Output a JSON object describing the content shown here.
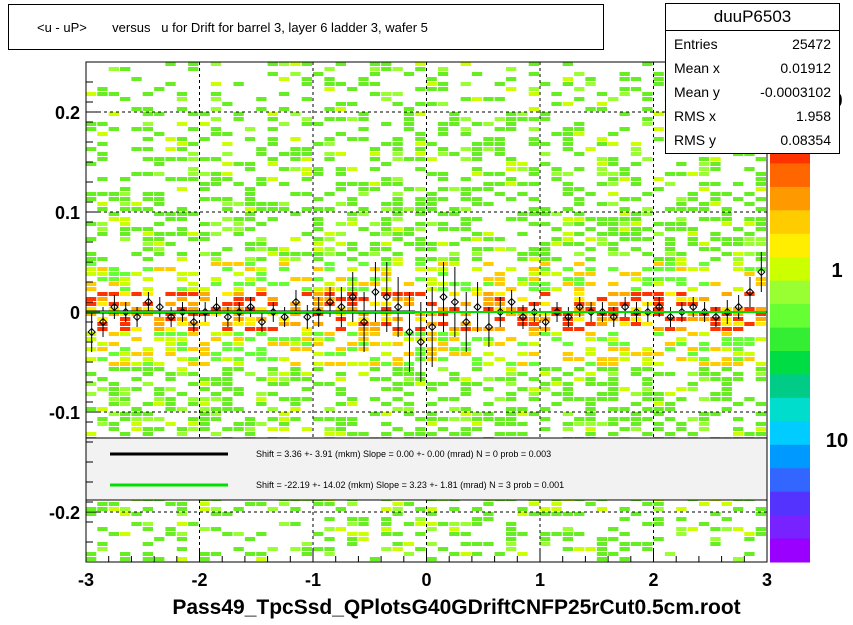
{
  "title": "<u - uP>       versus   u for Drift for barrel 3, layer 6 ladder 3, wafer 5",
  "footer": "Pass49_TpcSsd_QPlotsG40GDriftCNFP25rCut0.5cm.root",
  "stats": {
    "name": "duuP6503",
    "rows": [
      {
        "label": "Entries",
        "value": "25472"
      },
      {
        "label": "Mean x",
        "value": "0.01912"
      },
      {
        "label": "Mean y",
        "value": "-0.0003102"
      },
      {
        "label": "RMS x",
        "value": "1.958"
      },
      {
        "label": "RMS y",
        "value": "0.08354"
      }
    ]
  },
  "colorbar": {
    "labels": [
      "0",
      "1",
      "10"
    ]
  },
  "legend": [
    {
      "color": "#000000",
      "text": "Shift =     3.36 +- 3.91 (mkm) Slope =     0.00 +- 0.00 (mrad)  N = 0 prob = 0.003"
    },
    {
      "color": "#00e000",
      "text": "Shift =   -22.19 +- 14.02 (mkm) Slope =     3.23 +- 1.81 (mrad)  N = 3 prob = 0.001"
    }
  ],
  "chart_data": {
    "type": "heatmap",
    "title": "<u - uP>       versus   u for Drift for barrel 3, layer 6 ladder 3, wafer 5",
    "xlabel": "",
    "ylabel": "",
    "xlim": [
      -3,
      3
    ],
    "ylim": [
      -0.25,
      0.25
    ],
    "xticks": [
      -3,
      -2,
      -1,
      0,
      1,
      2,
      3
    ],
    "yticks": [
      -0.2,
      -0.1,
      0,
      0.1,
      0.2
    ],
    "ytick_labels": [
      "-0.2",
      "-0.1",
      "0",
      "0.1",
      "0.2"
    ],
    "grid": true,
    "profile_points": {
      "x": [
        -2.95,
        -2.85,
        -2.75,
        -2.65,
        -2.55,
        -2.45,
        -2.35,
        -2.25,
        -2.15,
        -2.05,
        -1.95,
        -1.85,
        -1.75,
        -1.65,
        -1.55,
        -1.45,
        -1.35,
        -1.25,
        -1.15,
        -1.05,
        -0.95,
        -0.85,
        -0.75,
        -0.65,
        -0.55,
        -0.45,
        -0.35,
        -0.25,
        -0.15,
        -0.05,
        0.05,
        0.15,
        0.25,
        0.35,
        0.45,
        0.55,
        0.65,
        0.75,
        0.85,
        0.95,
        1.05,
        1.15,
        1.25,
        1.35,
        1.45,
        1.55,
        1.65,
        1.75,
        1.85,
        1.95,
        2.05,
        2.15,
        2.25,
        2.35,
        2.45,
        2.55,
        2.65,
        2.75,
        2.85,
        2.95
      ],
      "y": [
        -0.02,
        -0.01,
        0.005,
        0.0,
        -0.005,
        0.01,
        0.005,
        -0.005,
        0.0,
        -0.01,
        0.0,
        0.005,
        -0.005,
        0.0,
        0.005,
        -0.01,
        0.0,
        -0.005,
        0.01,
        -0.005,
        0.0,
        0.01,
        0.005,
        0.015,
        -0.01,
        0.02,
        0.015,
        0.005,
        -0.02,
        -0.03,
        -0.015,
        0.015,
        0.01,
        -0.01,
        0.005,
        -0.015,
        0.0,
        0.01,
        -0.005,
        0.0,
        -0.01,
        0.0,
        -0.005,
        0.005,
        0.0,
        0.0,
        -0.005,
        0.005,
        0.0,
        0.0,
        0.005,
        -0.005,
        0.0,
        0.005,
        0.0,
        -0.005,
        0.0,
        0.005,
        0.02,
        0.04
      ],
      "err": [
        0.02,
        0.015,
        0.012,
        0.01,
        0.01,
        0.01,
        0.01,
        0.01,
        0.01,
        0.01,
        0.01,
        0.01,
        0.01,
        0.01,
        0.01,
        0.01,
        0.01,
        0.01,
        0.012,
        0.012,
        0.015,
        0.015,
        0.02,
        0.025,
        0.03,
        0.03,
        0.035,
        0.03,
        0.04,
        0.04,
        0.04,
        0.035,
        0.035,
        0.03,
        0.025,
        0.02,
        0.015,
        0.012,
        0.012,
        0.01,
        0.01,
        0.01,
        0.01,
        0.01,
        0.01,
        0.01,
        0.01,
        0.01,
        0.01,
        0.01,
        0.01,
        0.01,
        0.01,
        0.01,
        0.01,
        0.01,
        0.012,
        0.012,
        0.015,
        0.02
      ]
    },
    "fit_lines": [
      {
        "color": "#000000",
        "x": [
          -3,
          -0.1
        ],
        "y": [
          0.0,
          0.0
        ]
      },
      {
        "color": "#00e000",
        "x": [
          -3,
          3
        ],
        "y": [
          0.0,
          0.0
        ]
      }
    ]
  }
}
